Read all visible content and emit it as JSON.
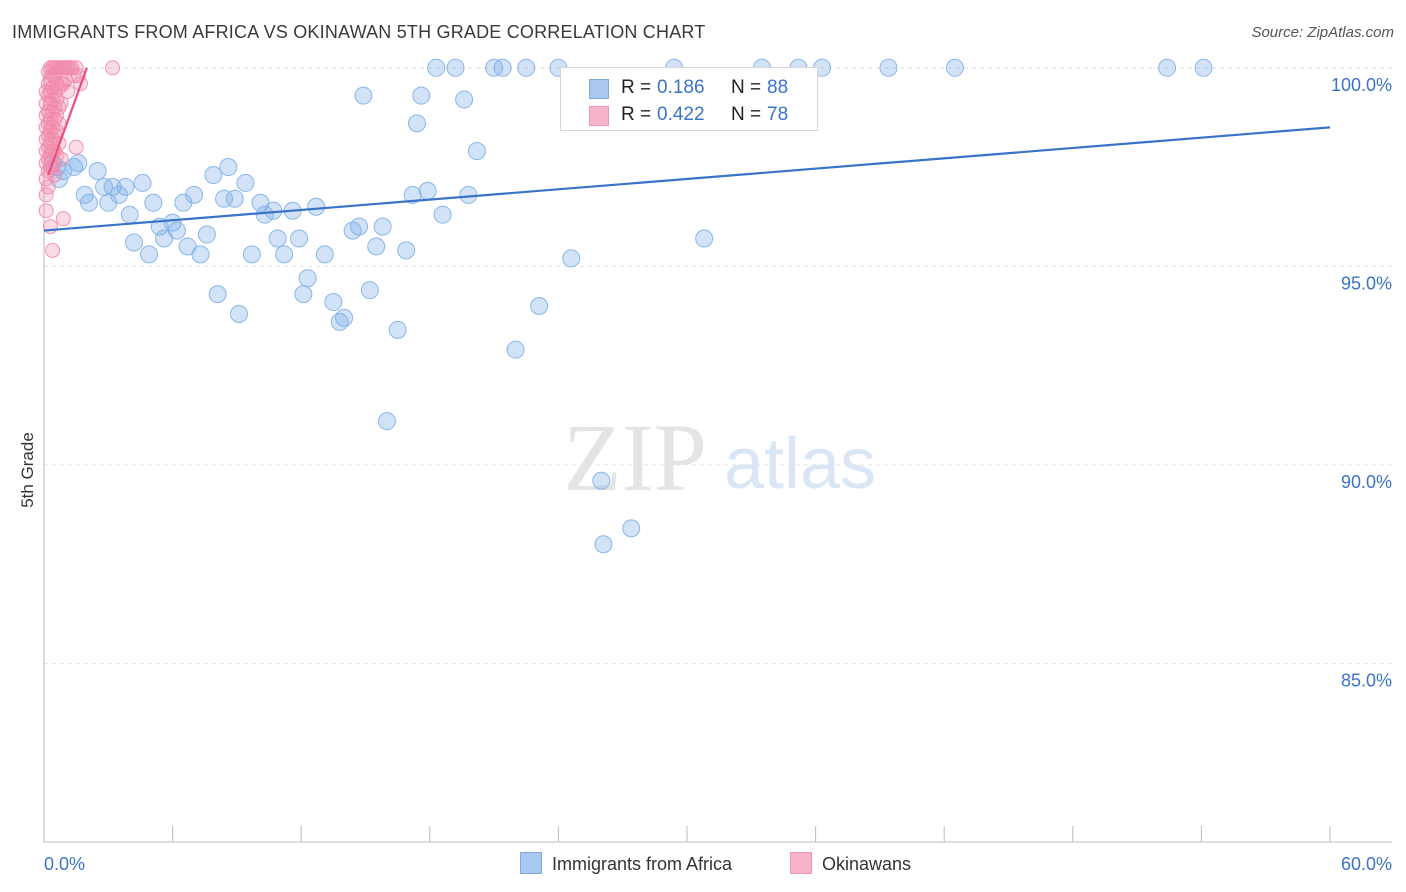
{
  "title": "IMMIGRANTS FROM AFRICA VS OKINAWAN 5TH GRADE CORRELATION CHART",
  "source": "Source: ZipAtlas.com",
  "watermark": {
    "zip": "ZIP",
    "atlas": "atlas"
  },
  "legend_top": {
    "series1": {
      "r_label": "R = ",
      "r_value": "0.186",
      "n_label": "N = ",
      "n_value": "88",
      "color": "#a8c8f0"
    },
    "series2": {
      "r_label": "R = ",
      "r_value": "0.422",
      "n_label": "N = ",
      "n_value": "78",
      "color": "#f7b3c8"
    }
  },
  "legend_bottom": {
    "series1": "Immigrants from Africa",
    "series2": "Okinawans"
  },
  "chart_data": {
    "type": "scatter",
    "title": "IMMIGRANTS FROM AFRICA VS OKINAWAN 5TH GRADE CORRELATION CHART",
    "xlabel": "",
    "ylabel": "5th Grade",
    "xlim": [
      0,
      60
    ],
    "ylim": [
      80.5,
      100.7
    ],
    "x_tick_labels": {
      "left": "0.0%",
      "right": "60.0%"
    },
    "y_ticks": [
      {
        "value": 100,
        "label": "100.0%"
      },
      {
        "value": 95,
        "label": "95.0%"
      },
      {
        "value": 90,
        "label": "90.0%"
      },
      {
        "value": 85,
        "label": "85.0%"
      }
    ],
    "grid": true,
    "series": [
      {
        "name": "Immigrants from Africa",
        "color": "#7fb0e8",
        "trend": {
          "x": [
            0,
            60
          ],
          "y": [
            95.9,
            98.5
          ],
          "color": "#3a74c9"
        },
        "points": [
          [
            0.6,
            97.5
          ],
          [
            0.9,
            97.4
          ],
          [
            1.4,
            97.5
          ],
          [
            1.6,
            97.6
          ],
          [
            1.9,
            96.8
          ],
          [
            2.1,
            96.6
          ],
          [
            2.5,
            97.4
          ],
          [
            2.8,
            97.0
          ],
          [
            3.0,
            96.6
          ],
          [
            3.2,
            97.0
          ],
          [
            3.5,
            96.8
          ],
          [
            3.8,
            97.0
          ],
          [
            4.0,
            96.3
          ],
          [
            4.2,
            95.6
          ],
          [
            4.6,
            97.1
          ],
          [
            4.9,
            95.3
          ],
          [
            5.1,
            96.6
          ],
          [
            5.4,
            96.0
          ],
          [
            5.6,
            95.7
          ],
          [
            6.0,
            96.1
          ],
          [
            6.2,
            95.9
          ],
          [
            6.5,
            96.6
          ],
          [
            6.7,
            95.5
          ],
          [
            7.0,
            96.8
          ],
          [
            7.3,
            95.3
          ],
          [
            7.6,
            95.8
          ],
          [
            7.9,
            97.3
          ],
          [
            8.1,
            94.3
          ],
          [
            8.4,
            96.7
          ],
          [
            8.6,
            97.5
          ],
          [
            8.9,
            96.7
          ],
          [
            9.1,
            93.8
          ],
          [
            9.4,
            97.1
          ],
          [
            9.7,
            95.3
          ],
          [
            10.1,
            96.6
          ],
          [
            10.3,
            96.3
          ],
          [
            10.7,
            96.4
          ],
          [
            10.9,
            95.7
          ],
          [
            11.2,
            95.3
          ],
          [
            11.6,
            96.4
          ],
          [
            11.9,
            95.7
          ],
          [
            12.1,
            94.3
          ],
          [
            12.3,
            94.7
          ],
          [
            12.7,
            96.5
          ],
          [
            13.1,
            95.3
          ],
          [
            13.5,
            94.1
          ],
          [
            13.8,
            93.6
          ],
          [
            14.0,
            93.7
          ],
          [
            14.4,
            95.9
          ],
          [
            14.7,
            96.0
          ],
          [
            14.9,
            99.3
          ],
          [
            15.2,
            94.4
          ],
          [
            15.5,
            95.5
          ],
          [
            15.8,
            96.0
          ],
          [
            16.0,
            91.1
          ],
          [
            16.5,
            93.4
          ],
          [
            16.9,
            95.4
          ],
          [
            17.2,
            96.8
          ],
          [
            17.4,
            98.6
          ],
          [
            17.6,
            99.3
          ],
          [
            17.9,
            96.9
          ],
          [
            18.3,
            100.0
          ],
          [
            18.6,
            96.3
          ],
          [
            19.2,
            100.0
          ],
          [
            19.6,
            99.2
          ],
          [
            19.8,
            96.8
          ],
          [
            20.2,
            97.9
          ],
          [
            21.0,
            100.0
          ],
          [
            21.4,
            100.0
          ],
          [
            22.0,
            92.9
          ],
          [
            22.5,
            100.0
          ],
          [
            23.1,
            94.0
          ],
          [
            24.0,
            100.0
          ],
          [
            24.6,
            95.2
          ],
          [
            26.0,
            89.6
          ],
          [
            26.1,
            88.0
          ],
          [
            27.4,
            88.4
          ],
          [
            29.4,
            100.0
          ],
          [
            30.8,
            95.7
          ],
          [
            33.5,
            100.0
          ],
          [
            35.2,
            100.0
          ],
          [
            36.3,
            100.0
          ],
          [
            39.4,
            100.0
          ],
          [
            42.5,
            100.0
          ],
          [
            52.4,
            100.0
          ],
          [
            54.1,
            100.0
          ],
          [
            0.4,
            97.6
          ],
          [
            0.7,
            97.2
          ]
        ]
      },
      {
        "name": "Okinawans",
        "color": "#f28bab",
        "trend": {
          "x": [
            0.2,
            2.0
          ],
          "y": [
            97.3,
            100.0
          ],
          "color": "#e8507a"
        },
        "points": [
          [
            0.1,
            99.4
          ],
          [
            0.1,
            99.1
          ],
          [
            0.1,
            98.8
          ],
          [
            0.1,
            98.5
          ],
          [
            0.1,
            98.2
          ],
          [
            0.1,
            97.9
          ],
          [
            0.1,
            97.6
          ],
          [
            0.1,
            97.2
          ],
          [
            0.1,
            96.8
          ],
          [
            0.1,
            96.4
          ],
          [
            0.2,
            99.9
          ],
          [
            0.2,
            99.6
          ],
          [
            0.2,
            99.3
          ],
          [
            0.2,
            98.9
          ],
          [
            0.2,
            98.6
          ],
          [
            0.2,
            98.3
          ],
          [
            0.2,
            98.0
          ],
          [
            0.2,
            97.7
          ],
          [
            0.2,
            97.4
          ],
          [
            0.2,
            97.0
          ],
          [
            0.3,
            100.0
          ],
          [
            0.3,
            99.7
          ],
          [
            0.3,
            99.4
          ],
          [
            0.3,
            99.1
          ],
          [
            0.3,
            98.7
          ],
          [
            0.3,
            98.4
          ],
          [
            0.3,
            98.1
          ],
          [
            0.3,
            97.8
          ],
          [
            0.3,
            97.5
          ],
          [
            0.3,
            96.0
          ],
          [
            0.4,
            100.0
          ],
          [
            0.4,
            99.8
          ],
          [
            0.4,
            99.5
          ],
          [
            0.4,
            99.2
          ],
          [
            0.4,
            98.9
          ],
          [
            0.4,
            98.5
          ],
          [
            0.4,
            98.2
          ],
          [
            0.4,
            97.9
          ],
          [
            0.4,
            97.5
          ],
          [
            0.4,
            95.4
          ],
          [
            0.5,
            100.0
          ],
          [
            0.5,
            99.8
          ],
          [
            0.5,
            99.4
          ],
          [
            0.5,
            99.0
          ],
          [
            0.5,
            98.7
          ],
          [
            0.5,
            98.3
          ],
          [
            0.5,
            97.9
          ],
          [
            0.5,
            97.3
          ],
          [
            0.6,
            100.0
          ],
          [
            0.6,
            99.6
          ],
          [
            0.6,
            99.2
          ],
          [
            0.6,
            98.8
          ],
          [
            0.6,
            98.4
          ],
          [
            0.6,
            97.8
          ],
          [
            0.7,
            100.0
          ],
          [
            0.7,
            99.5
          ],
          [
            0.7,
            99.0
          ],
          [
            0.7,
            98.6
          ],
          [
            0.7,
            98.1
          ],
          [
            0.8,
            100.0
          ],
          [
            0.8,
            99.6
          ],
          [
            0.8,
            99.1
          ],
          [
            0.8,
            97.7
          ],
          [
            0.9,
            100.0
          ],
          [
            0.9,
            99.6
          ],
          [
            0.9,
            96.2
          ],
          [
            1.0,
            100.0
          ],
          [
            1.0,
            99.7
          ],
          [
            1.1,
            100.0
          ],
          [
            1.1,
            99.4
          ],
          [
            1.2,
            100.0
          ],
          [
            1.3,
            100.0
          ],
          [
            1.4,
            99.8
          ],
          [
            1.5,
            100.0
          ],
          [
            1.5,
            98.0
          ],
          [
            1.6,
            99.8
          ],
          [
            1.7,
            99.6
          ],
          [
            3.2,
            100.0
          ]
        ]
      }
    ]
  }
}
